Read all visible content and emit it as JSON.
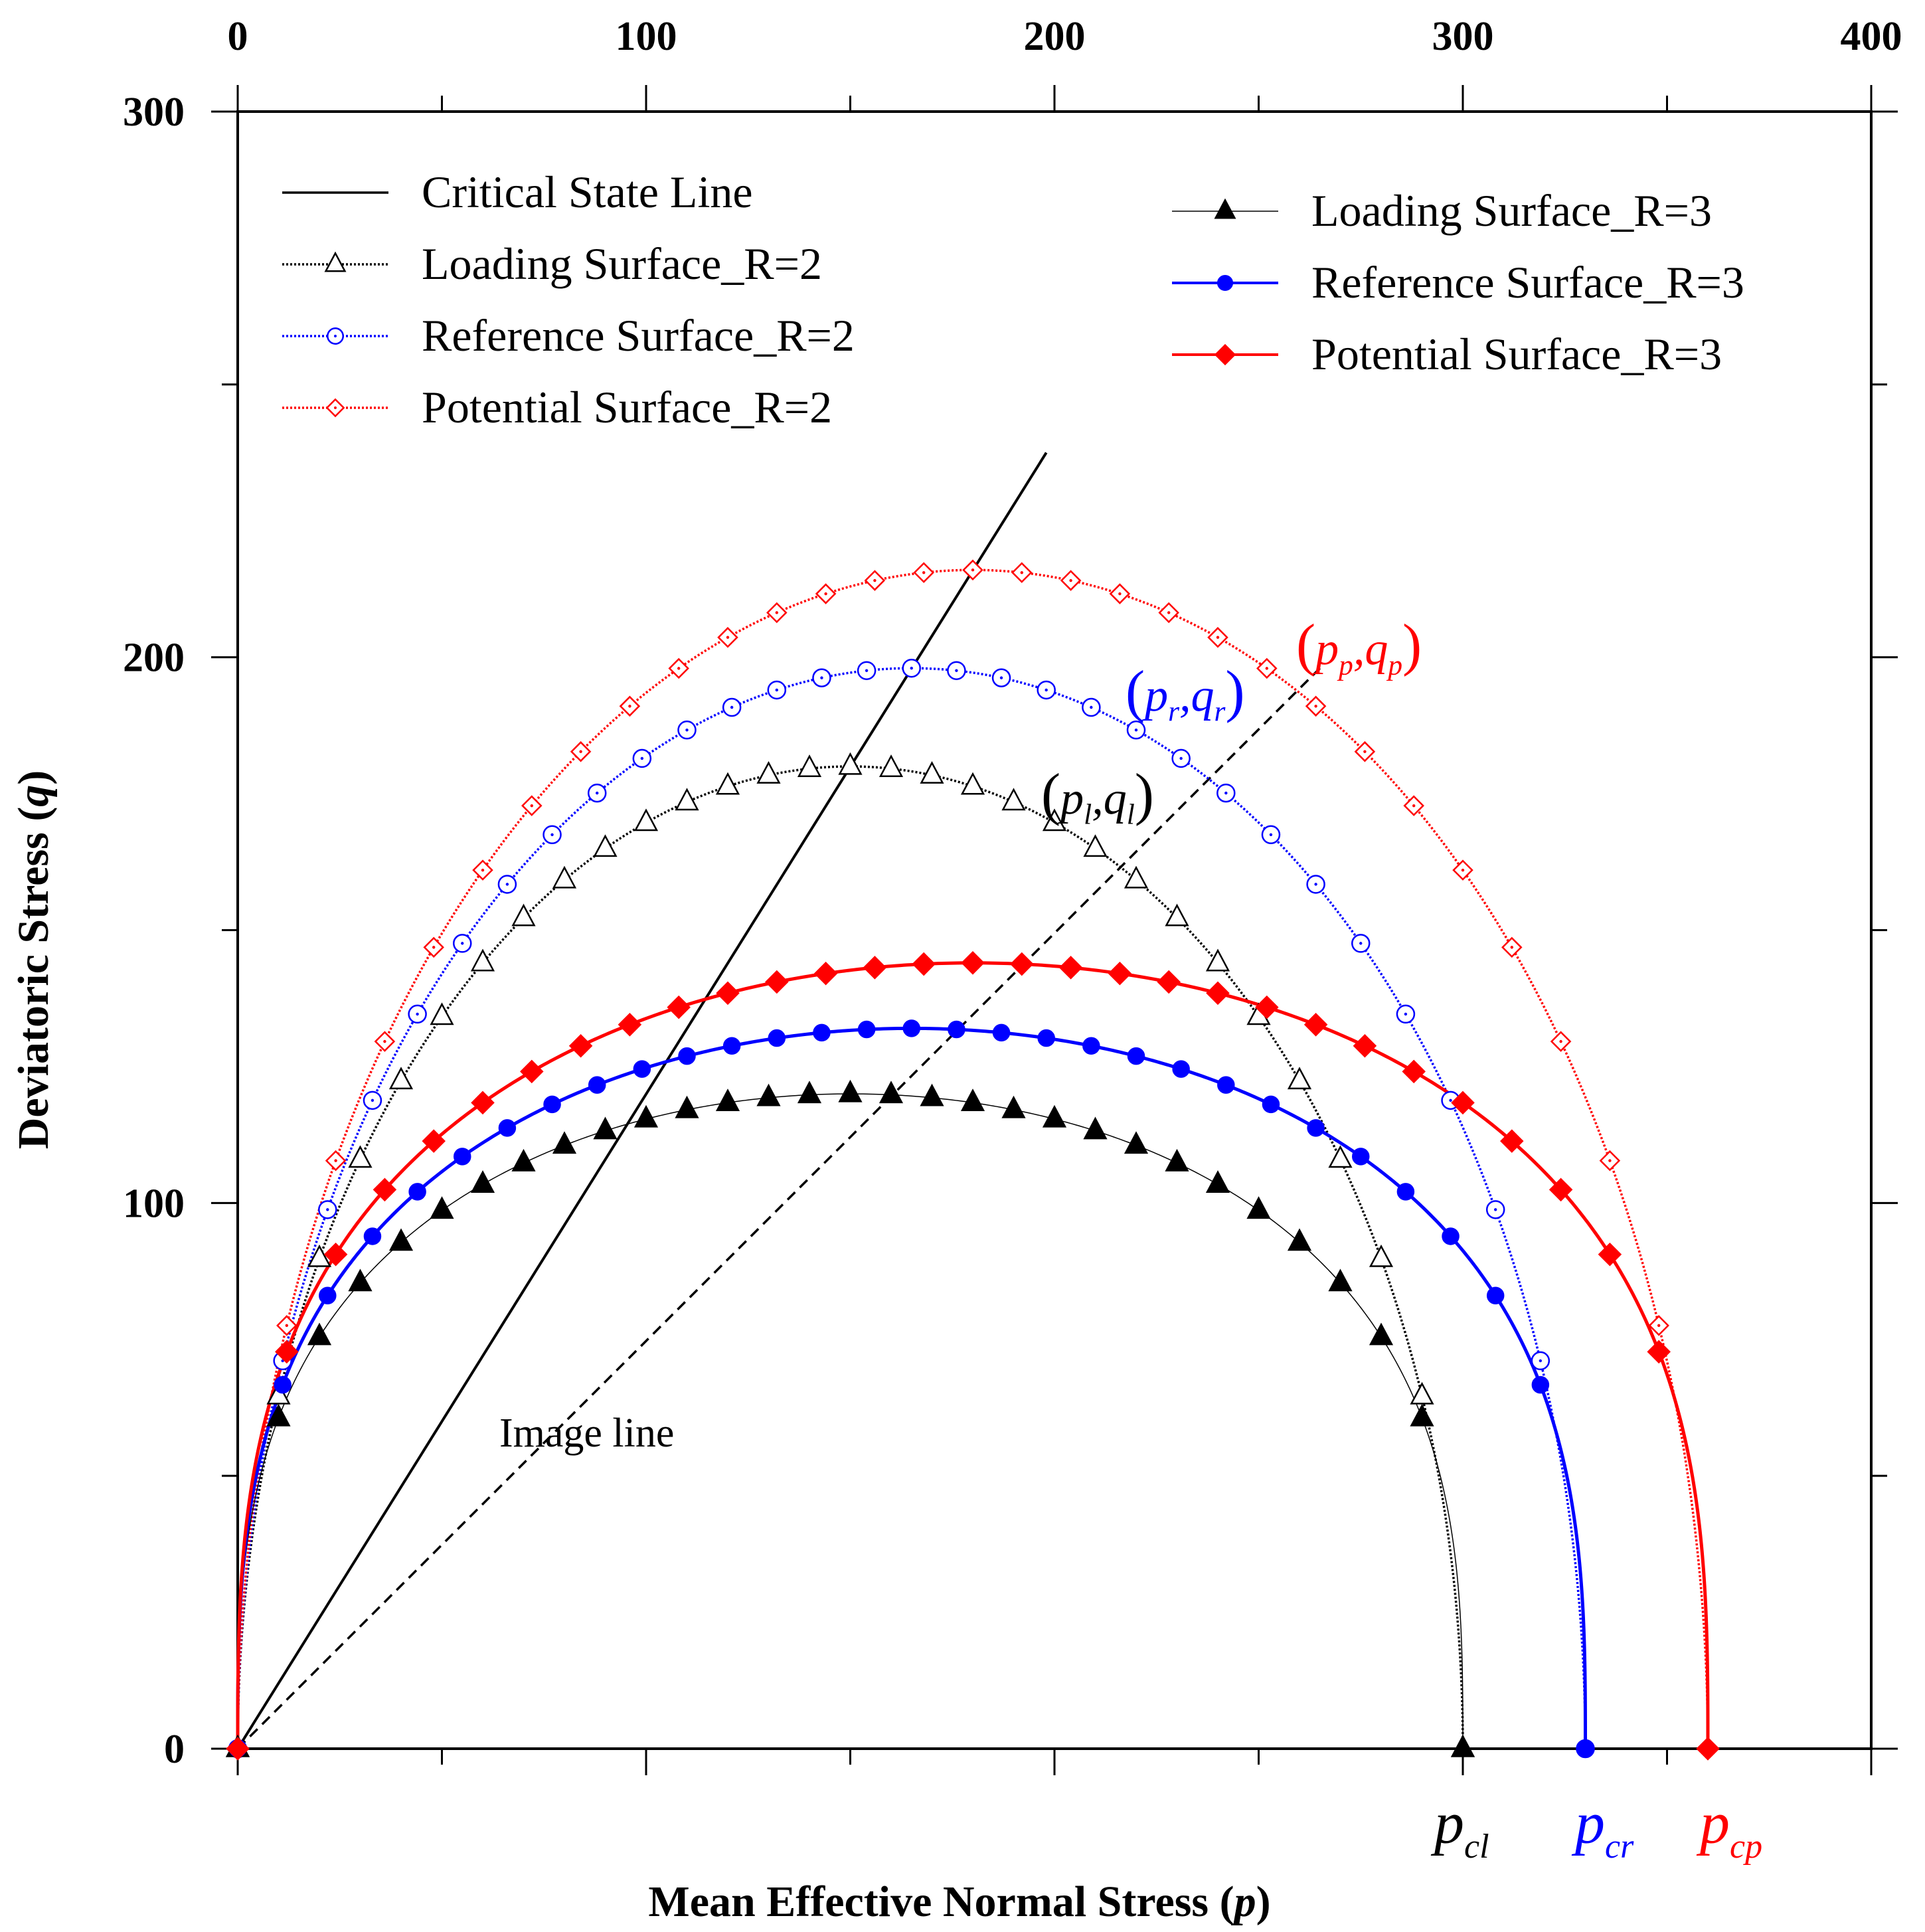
{
  "chart_data": {
    "type": "line",
    "xlabel": "Mean Effective Normal Stress (p)",
    "xlabel_plain": "Mean Effective Normal Stress (",
    "xlabel_var": "p",
    "xlabel_close": ")",
    "ylabel": "Deviatoric Stress (q)",
    "ylabel_plain": "Deviatoric Stress (",
    "ylabel_var": "q",
    "ylabel_close": ")",
    "xlim": [
      0,
      400
    ],
    "ylim": [
      0,
      300
    ],
    "x_ticks": [
      0,
      100,
      200,
      300,
      400
    ],
    "y_ticks": [
      0,
      100,
      200,
      300
    ],
    "x_minor_step": 50,
    "y_minor_step": 50,
    "colors": {
      "black": "#000000",
      "blue": "#0000ff",
      "red": "#ff0000"
    },
    "critical_state_line": {
      "name": "Critical State Line",
      "x": [
        0,
        198
      ],
      "y": [
        0,
        237.5
      ],
      "style": "solid"
    },
    "image_line": {
      "name": "Image line",
      "x": [
        0,
        265
      ],
      "y": [
        0,
        198
      ],
      "style": "dashed"
    },
    "series": [
      {
        "name": "Loading Surface_R=2",
        "R": 2,
        "p0": 300,
        "q_max": 180,
        "color": "#000000",
        "marker": "triangle-open",
        "line": "dotted",
        "marker_x": [
          10,
          20,
          30,
          40,
          50,
          60,
          70,
          80,
          90,
          100,
          110,
          120,
          130,
          140,
          150,
          160,
          170,
          180,
          190,
          200,
          210,
          220,
          230,
          240,
          250,
          260,
          270,
          280,
          290,
          300
        ]
      },
      {
        "name": "Reference Surface_R=2",
        "R": 2,
        "p0": 330,
        "q_max": 198,
        "color": "#0000ff",
        "marker": "circle-open",
        "line": "dotted",
        "marker_x": [
          11,
          22,
          33,
          44,
          55,
          66,
          77,
          88,
          99,
          110,
          121,
          132,
          143,
          154,
          165,
          176,
          187,
          198,
          209,
          220,
          231,
          242,
          253,
          264,
          275,
          286,
          297,
          308,
          319,
          330
        ]
      },
      {
        "name": "Potential Surface_R=2",
        "R": 2,
        "p0": 360,
        "q_max": 216,
        "color": "#ff0000",
        "marker": "diamond-open",
        "line": "dotted",
        "marker_x": [
          12,
          24,
          36,
          48,
          60,
          72,
          84,
          96,
          108,
          120,
          132,
          144,
          156,
          168,
          180,
          192,
          204,
          216,
          228,
          240,
          252,
          264,
          276,
          288,
          300,
          312,
          324,
          336,
          348,
          360
        ]
      },
      {
        "name": "Loading Surface_R=3",
        "R": 3,
        "p0": 300,
        "q_max": 120,
        "color": "#000000",
        "marker": "triangle-filled",
        "line": "thin-solid",
        "marker_x": [
          10,
          20,
          30,
          40,
          50,
          60,
          70,
          80,
          90,
          100,
          110,
          120,
          130,
          140,
          150,
          160,
          170,
          180,
          190,
          200,
          210,
          220,
          230,
          240,
          250,
          260,
          270,
          280,
          290,
          300
        ]
      },
      {
        "name": "Reference Surface_R=3",
        "R": 3,
        "p0": 330,
        "q_max": 132,
        "color": "#0000ff",
        "marker": "circle-filled",
        "line": "solid",
        "marker_x": [
          11,
          22,
          33,
          44,
          55,
          66,
          77,
          88,
          99,
          110,
          121,
          132,
          143,
          154,
          165,
          176,
          187,
          198,
          209,
          220,
          231,
          242,
          253,
          264,
          275,
          286,
          297,
          308,
          319,
          330
        ]
      },
      {
        "name": "Potential Surface_R=3",
        "R": 3,
        "p0": 360,
        "q_max": 144,
        "color": "#ff0000",
        "marker": "diamond-filled",
        "line": "solid",
        "marker_x": [
          12,
          24,
          36,
          48,
          60,
          72,
          84,
          96,
          108,
          120,
          132,
          144,
          156,
          168,
          180,
          192,
          204,
          216,
          228,
          240,
          252,
          264,
          276,
          288,
          300,
          312,
          324,
          336,
          348,
          360
        ]
      }
    ],
    "legend": {
      "left_column": [
        "Critical State Line",
        "Loading Surface_R=2",
        "Reference Surface_R=2",
        "Potential Surface_R=2"
      ],
      "right_column": [
        "Loading Surface_R=3",
        "Reference Surface_R=3",
        "Potential Surface_R=3"
      ]
    },
    "annotations": {
      "image_line_label": "Image line",
      "point_loading": {
        "base1": "p",
        "sub1": "l",
        "base2": "q",
        "sub2": "l",
        "color": "#000000"
      },
      "point_reference": {
        "base1": "p",
        "sub1": "r",
        "base2": "q",
        "sub2": "r",
        "color": "#0000ff"
      },
      "point_potential": {
        "base1": "p",
        "sub1": "p",
        "base2": "q",
        "sub2": "p",
        "color": "#ff0000"
      },
      "p_cl": {
        "base": "p",
        "sub": "cl",
        "color": "#000000"
      },
      "p_cr": {
        "base": "p",
        "sub": "cr",
        "color": "#0000ff"
      },
      "p_cp": {
        "base": "p",
        "sub": "cp",
        "color": "#ff0000"
      }
    }
  }
}
